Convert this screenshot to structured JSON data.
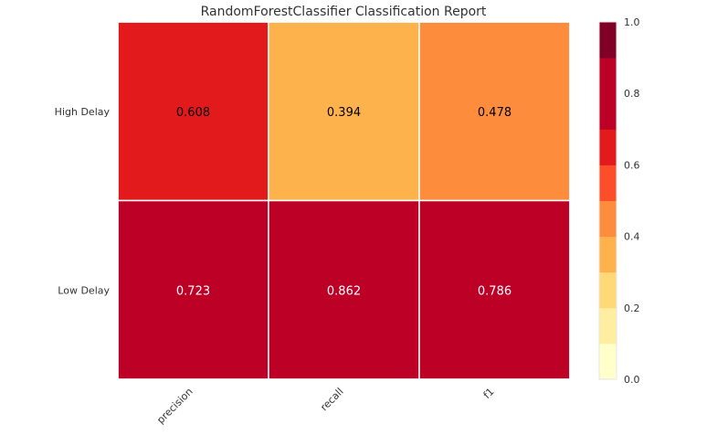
{
  "chart_data": {
    "type": "heatmap",
    "title": "RandomForestClassifier Classification Report",
    "rows": [
      "High Delay",
      "Low Delay"
    ],
    "columns": [
      "precision",
      "recall",
      "f1"
    ],
    "values": [
      [
        0.608,
        0.394,
        0.478
      ],
      [
        0.723,
        0.862,
        0.786
      ]
    ],
    "value_labels": [
      [
        "0.608",
        "0.394",
        "0.478"
      ],
      [
        "0.723",
        "0.862",
        "0.786"
      ]
    ],
    "colorbar": {
      "range": [
        0.0,
        1.0
      ],
      "ticks": [
        "0.0",
        "0.2",
        "0.4",
        "0.6",
        "0.8",
        "1.0"
      ],
      "bins": 10,
      "colors": [
        "#ffffcc",
        "#ffeda0",
        "#fed976",
        "#feb24c",
        "#fd8d3c",
        "#fc4e2a",
        "#e31a1c",
        "#bd0026",
        "#bd0026",
        "#800026"
      ]
    },
    "grid": false
  }
}
